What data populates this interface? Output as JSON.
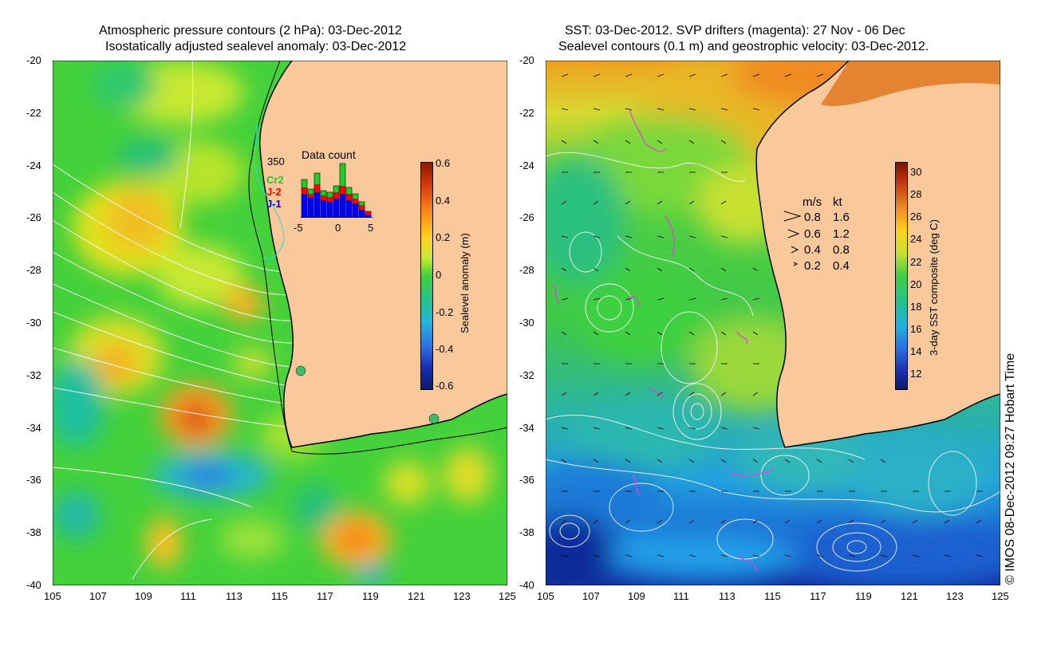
{
  "left_panel": {
    "title_line1": "Atmospheric pressure contours (2 hPa): 03-Dec-2012",
    "title_line2": "Isostatically adjusted sealevel anomaly: 03-Dec-2012",
    "colorbar": {
      "label": "Sealevel anomaly (m)",
      "ticks": [
        "0.6",
        "0.4",
        "0.2",
        "0",
        "-0.2",
        "-0.4",
        "-0.6"
      ],
      "range": [
        -0.6,
        0.6
      ]
    },
    "inset": {
      "title": "Data count",
      "max_label": "350",
      "series": [
        {
          "name": "Cr2",
          "color": "#22cc22"
        },
        {
          "name": "J-2",
          "color": "#ff0000"
        },
        {
          "name": "J-1",
          "color": "#0000ff"
        }
      ],
      "x_ticks": [
        "-5",
        "0",
        "5"
      ]
    }
  },
  "right_panel": {
    "title_line1": "SST: 03-Dec-2012. SVP drifters (magenta): 27 Nov - 06 Dec",
    "title_line2": "Sealevel contours (0.1 m) and geostrophic velocity: 03-Dec-2012.",
    "colorbar": {
      "label": "3-day SST composite (deg C)",
      "ticks": [
        "30",
        "28",
        "26",
        "24",
        "22",
        "20",
        "18",
        "16",
        "14",
        "12"
      ],
      "range": [
        11,
        31
      ]
    },
    "velocity_legend": {
      "header_ms": "m/s",
      "header_kt": "kt",
      "rows": [
        {
          "ms": "0.8",
          "kt": "1.6"
        },
        {
          "ms": "0.6",
          "kt": "1.2"
        },
        {
          "ms": "0.4",
          "kt": "0.8"
        },
        {
          "ms": "0.2",
          "kt": "0.4"
        }
      ]
    }
  },
  "axes": {
    "lat_ticks": [
      "-20",
      "-22",
      "-24",
      "-26",
      "-28",
      "-30",
      "-32",
      "-34",
      "-36",
      "-38",
      "-40"
    ],
    "lon_ticks": [
      "105",
      "107",
      "109",
      "111",
      "113",
      "115",
      "117",
      "119",
      "121",
      "123",
      "125"
    ]
  },
  "credit": "© IMOS 08-Dec-2012 09:27 Hobart Time",
  "colors": {
    "land": "#f9c99b",
    "ocean_base": "#3fd23a",
    "contour": "#ffffff",
    "drifter": "#e040e0",
    "coastline": "#000000"
  }
}
